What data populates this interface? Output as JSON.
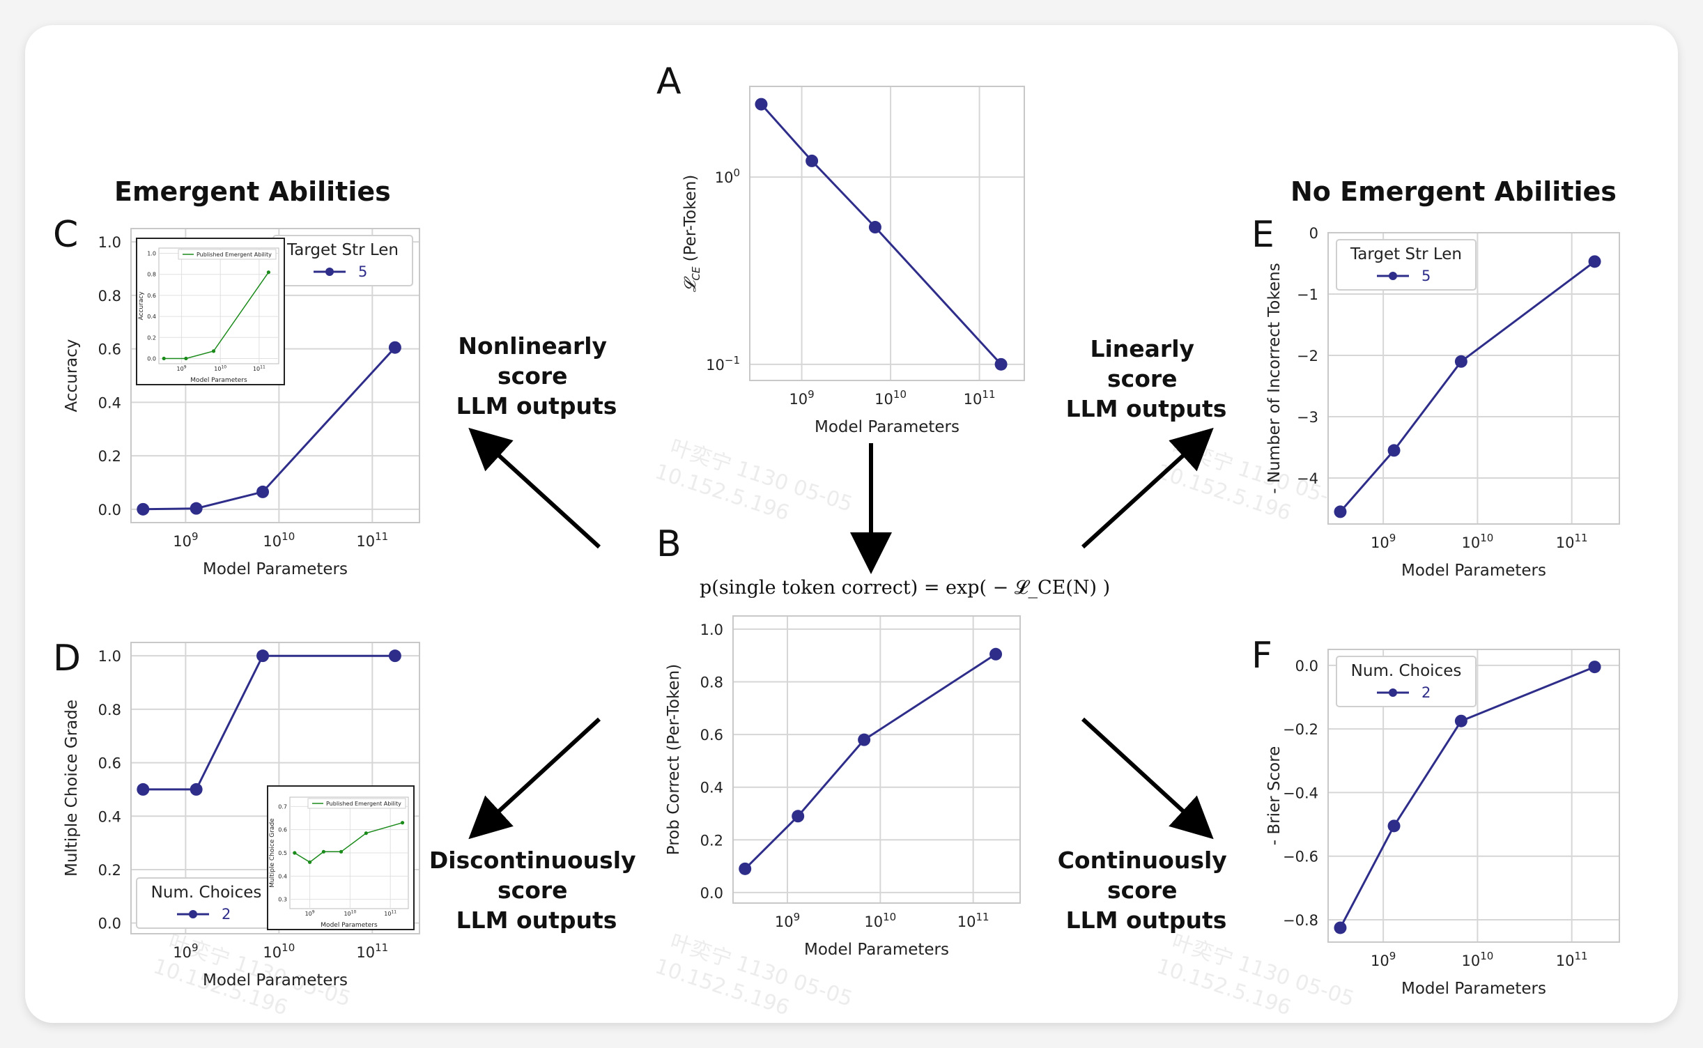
{
  "headings": {
    "left": "Emergent Abilities",
    "right": "No Emergent Abilities"
  },
  "formula_b": "p(single token correct) = exp( − 𝓛_CE(N) )",
  "edge_labels": {
    "top_left": [
      "Nonlinearly",
      "score",
      "LLM outputs"
    ],
    "bottom_left": [
      "Discontinuously",
      "score",
      "LLM outputs"
    ],
    "top_right": [
      "Linearly",
      "score",
      "LLM outputs"
    ],
    "bottom_right": [
      "Continuously",
      "score",
      "LLM outputs"
    ]
  },
  "watermark": [
    "叶奕宁 1130 05-05",
    "10.152.5.196"
  ],
  "colors": {
    "series": "#2e2e8a",
    "inset_series": "#1a8a1a",
    "arrow": "#000000"
  },
  "chart_data": [
    {
      "id": "A",
      "type": "line",
      "x": [
        350000000.0,
        1300000000.0,
        6700000000.0,
        175000000000.0
      ],
      "y": [
        2.45,
        1.22,
        0.54,
        0.1
      ],
      "xscale": "log",
      "yscale": "log",
      "xlim": [
        260000000.0,
        320000000000.0
      ],
      "ylim": [
        0.082,
        3.05
      ],
      "xticks": [
        {
          "value": 1000000000.0,
          "label": "10",
          "exp": "9"
        },
        {
          "value": 10000000000.0,
          "label": "10",
          "exp": "10"
        },
        {
          "value": 100000000000.0,
          "label": "10",
          "exp": "11"
        }
      ],
      "yticks": [
        {
          "value": 1,
          "label": "10",
          "exp": "0"
        },
        {
          "value": 0.1,
          "label": "10",
          "exp": "−1"
        }
      ],
      "xlabel": "Model Parameters",
      "ylabel_main": "𝓛",
      "ylabel_sub": "CE",
      "ylabel_rest": " (Per-Token)",
      "legend": null
    },
    {
      "id": "B",
      "type": "line",
      "x": [
        350000000.0,
        1300000000.0,
        6700000000.0,
        175000000000.0
      ],
      "y": [
        0.09,
        0.29,
        0.58,
        0.905
      ],
      "xscale": "log",
      "yscale": "linear",
      "xlim": [
        260000000.0,
        320000000000.0
      ],
      "ylim": [
        -0.04,
        1.05
      ],
      "xticks": [
        {
          "value": 1000000000.0,
          "label": "10",
          "exp": "9"
        },
        {
          "value": 10000000000.0,
          "label": "10",
          "exp": "10"
        },
        {
          "value": 100000000000.0,
          "label": "10",
          "exp": "11"
        }
      ],
      "yticks": [
        {
          "value": 0,
          "label": "0.0"
        },
        {
          "value": 0.2,
          "label": "0.2"
        },
        {
          "value": 0.4,
          "label": "0.4"
        },
        {
          "value": 0.6,
          "label": "0.6"
        },
        {
          "value": 0.8,
          "label": "0.8"
        },
        {
          "value": 1,
          "label": "1.0"
        }
      ],
      "xlabel": "Model Parameters",
      "ylabel": "Prob Correct (Per-Token)",
      "legend": null
    },
    {
      "id": "C",
      "type": "line",
      "x": [
        350000000.0,
        1300000000.0,
        6700000000.0,
        175000000000.0
      ],
      "y": [
        0.0,
        0.003,
        0.065,
        0.605
      ],
      "xscale": "log",
      "yscale": "linear",
      "xlim": [
        260000000.0,
        320000000000.0
      ],
      "ylim": [
        -0.05,
        1.05
      ],
      "xticks": [
        {
          "value": 1000000000.0,
          "label": "10",
          "exp": "9"
        },
        {
          "value": 10000000000.0,
          "label": "10",
          "exp": "10"
        },
        {
          "value": 100000000000.0,
          "label": "10",
          "exp": "11"
        }
      ],
      "yticks": [
        {
          "value": 0,
          "label": "0.0"
        },
        {
          "value": 0.2,
          "label": "0.2"
        },
        {
          "value": 0.4,
          "label": "0.4"
        },
        {
          "value": 0.6,
          "label": "0.6"
        },
        {
          "value": 0.8,
          "label": "0.8"
        },
        {
          "value": 1,
          "label": "1.0"
        }
      ],
      "xlabel": "Model Parameters",
      "ylabel": "Accuracy",
      "legend": {
        "title": "Target Str Len",
        "value": "5",
        "position": "top-right"
      },
      "inset": {
        "position": "top-left",
        "legend": "Published Emergent Ability",
        "x": [
          350000000.0,
          1300000000.0,
          6700000000.0,
          175000000000.0
        ],
        "y": [
          0.0,
          0.0,
          0.07,
          0.82
        ],
        "xlim": [
          260000000.0,
          320000000000.0
        ],
        "ylim": [
          -0.05,
          1.05
        ],
        "xticks": [
          {
            "value": 1000000000.0,
            "label": "10",
            "exp": "9"
          },
          {
            "value": 10000000000.0,
            "label": "10",
            "exp": "10"
          },
          {
            "value": 100000000000.0,
            "label": "10",
            "exp": "11"
          }
        ],
        "yticks": [
          {
            "value": 0,
            "label": "0.0"
          },
          {
            "value": 0.2,
            "label": "0.2"
          },
          {
            "value": 0.4,
            "label": "0.4"
          },
          {
            "value": 0.6,
            "label": "0.6"
          },
          {
            "value": 0.8,
            "label": "0.8"
          },
          {
            "value": 1,
            "label": "1.0"
          }
        ],
        "xlabel": "Model Parameters",
        "ylabel": "Accuracy"
      }
    },
    {
      "id": "D",
      "type": "line",
      "x": [
        350000000.0,
        1300000000.0,
        6700000000.0,
        175000000000.0
      ],
      "y": [
        0.5,
        0.5,
        1.0,
        1.0
      ],
      "xscale": "log",
      "yscale": "linear",
      "xlim": [
        260000000.0,
        320000000000.0
      ],
      "ylim": [
        -0.04,
        1.05
      ],
      "xticks": [
        {
          "value": 1000000000.0,
          "label": "10",
          "exp": "9"
        },
        {
          "value": 10000000000.0,
          "label": "10",
          "exp": "10"
        },
        {
          "value": 100000000000.0,
          "label": "10",
          "exp": "11"
        }
      ],
      "yticks": [
        {
          "value": 0,
          "label": "0.0"
        },
        {
          "value": 0.2,
          "label": "0.2"
        },
        {
          "value": 0.4,
          "label": "0.4"
        },
        {
          "value": 0.6,
          "label": "0.6"
        },
        {
          "value": 0.8,
          "label": "0.8"
        },
        {
          "value": 1,
          "label": "1.0"
        }
      ],
      "xlabel": "Model Parameters",
      "ylabel": "Multiple Choice Grade",
      "legend": {
        "title": "Num. Choices",
        "value": "2",
        "position": "bottom-left"
      },
      "inset": {
        "position": "bottom-right",
        "legend": "Published Emergent Ability",
        "x": [
          420000000.0,
          1000000000.0,
          2200000000.0,
          6000000000.0,
          25000000000.0,
          200000000000.0
        ],
        "y": [
          0.5,
          0.46,
          0.505,
          0.505,
          0.585,
          0.63
        ],
        "xlim": [
          320000000.0,
          280000000000.0
        ],
        "ylim": [
          0.26,
          0.74
        ],
        "xticks": [
          {
            "value": 1000000000.0,
            "label": "10",
            "exp": "9"
          },
          {
            "value": 10000000000.0,
            "label": "10",
            "exp": "10"
          },
          {
            "value": 100000000000.0,
            "label": "10",
            "exp": "11"
          }
        ],
        "yticks": [
          {
            "value": 0.3,
            "label": "0.3"
          },
          {
            "value": 0.4,
            "label": "0.4"
          },
          {
            "value": 0.5,
            "label": "0.5"
          },
          {
            "value": 0.6,
            "label": "0.6"
          },
          {
            "value": 0.7,
            "label": "0.7"
          }
        ],
        "xlabel": "Model Parameters",
        "ylabel": "Multiple Choice Grade"
      }
    },
    {
      "id": "E",
      "type": "line",
      "x": [
        350000000.0,
        1300000000.0,
        6700000000.0,
        175000000000.0
      ],
      "y": [
        -4.55,
        -3.55,
        -2.1,
        -0.47
      ],
      "xscale": "log",
      "yscale": "linear",
      "xlim": [
        260000000.0,
        320000000000.0
      ],
      "ylim": [
        -4.75,
        0.0
      ],
      "xticks": [
        {
          "value": 1000000000.0,
          "label": "10",
          "exp": "9"
        },
        {
          "value": 10000000000.0,
          "label": "10",
          "exp": "10"
        },
        {
          "value": 100000000000.0,
          "label": "10",
          "exp": "11"
        }
      ],
      "yticks": [
        {
          "value": 0,
          "label": "0"
        },
        {
          "value": -1,
          "label": "−1"
        },
        {
          "value": -2,
          "label": "−2"
        },
        {
          "value": -3,
          "label": "−3"
        },
        {
          "value": -4,
          "label": "−4"
        }
      ],
      "xlabel": "Model Parameters",
      "ylabel": "- Number of Incorrect Tokens",
      "legend": {
        "title": "Target Str Len",
        "value": "5",
        "position": "top-left"
      }
    },
    {
      "id": "F",
      "type": "line",
      "x": [
        350000000.0,
        1300000000.0,
        6700000000.0,
        175000000000.0
      ],
      "y": [
        -0.825,
        -0.505,
        -0.175,
        -0.005
      ],
      "xscale": "log",
      "yscale": "linear",
      "xlim": [
        260000000.0,
        320000000000.0
      ],
      "ylim": [
        -0.87,
        0.05
      ],
      "xticks": [
        {
          "value": 1000000000.0,
          "label": "10",
          "exp": "9"
        },
        {
          "value": 10000000000.0,
          "label": "10",
          "exp": "10"
        },
        {
          "value": 100000000000.0,
          "label": "10",
          "exp": "11"
        }
      ],
      "yticks": [
        {
          "value": 0,
          "label": "0.0"
        },
        {
          "value": -0.2,
          "label": "−0.2"
        },
        {
          "value": -0.4,
          "label": "−0.4"
        },
        {
          "value": -0.6,
          "label": "−0.6"
        },
        {
          "value": -0.8,
          "label": "−0.8"
        }
      ],
      "xlabel": "Model Parameters",
      "ylabel": "- Brier Score",
      "legend": {
        "title": "Num. Choices",
        "value": "2",
        "position": "top-left"
      }
    }
  ]
}
